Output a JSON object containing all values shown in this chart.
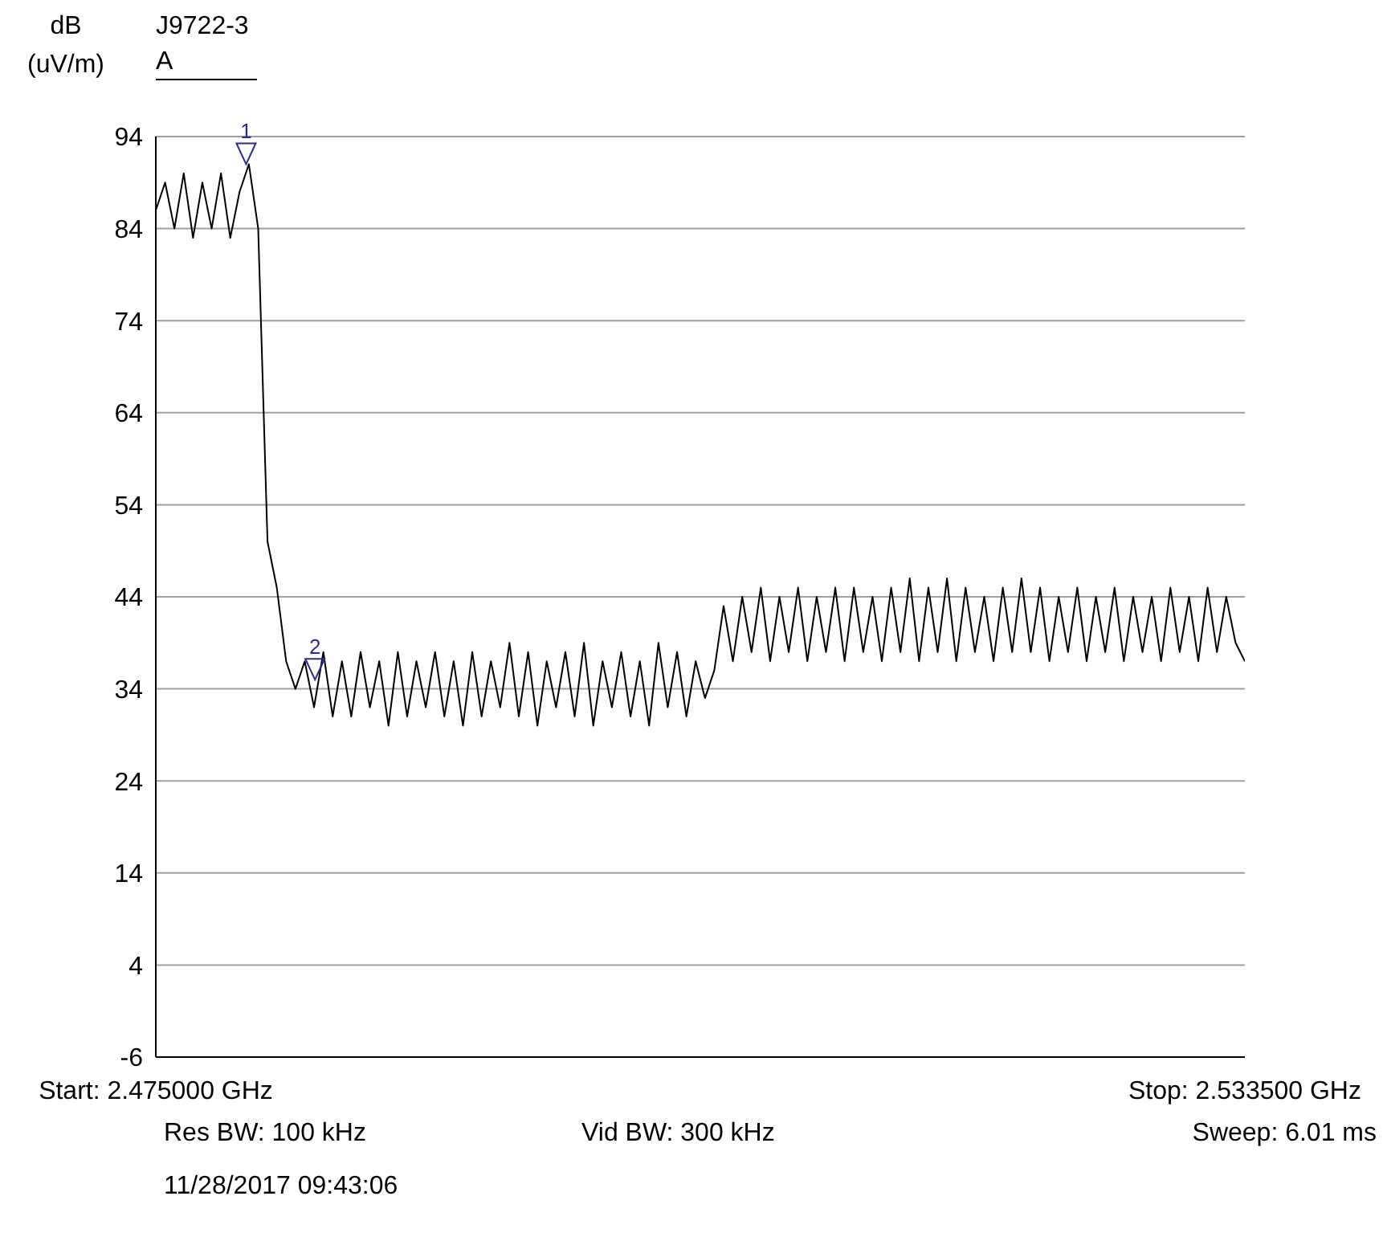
{
  "chart_data": {
    "type": "line",
    "title": "J9722-3",
    "ylabel": "dB (uV/m)",
    "x": [
      2.475,
      2.4755,
      2.476,
      2.4765,
      2.477,
      2.4775,
      2.478,
      2.4785,
      2.479,
      2.4795,
      2.48,
      2.4805,
      2.481,
      2.4815,
      2.482,
      2.4825,
      2.483,
      2.4835,
      2.484,
      2.4845,
      2.485,
      2.4855,
      2.486,
      2.4865,
      2.487,
      2.4875,
      2.488,
      2.4885,
      2.489,
      2.4895,
      2.49,
      2.4905,
      2.491,
      2.4915,
      2.492,
      2.4925,
      2.493,
      2.4935,
      2.494,
      2.4945,
      2.495,
      2.4955,
      2.496,
      2.4965,
      2.497,
      2.4975,
      2.498,
      2.4985,
      2.499,
      2.4995,
      2.5,
      2.5005,
      2.501,
      2.5015,
      2.502,
      2.5025,
      2.503,
      2.5035,
      2.504,
      2.5045,
      2.505,
      2.5055,
      2.506,
      2.5065,
      2.507,
      2.5075,
      2.508,
      2.5085,
      2.509,
      2.5095,
      2.51,
      2.5105,
      2.511,
      2.5115,
      2.512,
      2.5125,
      2.513,
      2.5135,
      2.514,
      2.5145,
      2.515,
      2.5155,
      2.516,
      2.5165,
      2.517,
      2.5175,
      2.518,
      2.5185,
      2.519,
      2.5195,
      2.52,
      2.5205,
      2.521,
      2.5215,
      2.522,
      2.5225,
      2.523,
      2.5235,
      2.524,
      2.5245,
      2.525,
      2.5255,
      2.526,
      2.5265,
      2.527,
      2.5275,
      2.528,
      2.5285,
      2.529,
      2.5295,
      2.53,
      2.5305,
      2.531,
      2.5315,
      2.532,
      2.5325,
      2.533,
      2.5335
    ],
    "series": [
      {
        "name": "A",
        "color": "#000000",
        "values": [
          86,
          89,
          84,
          90,
          83,
          89,
          84,
          90,
          83,
          88,
          91,
          84,
          50,
          45,
          37,
          34,
          37,
          32,
          38,
          31,
          37,
          31,
          38,
          32,
          37,
          30,
          38,
          31,
          37,
          32,
          38,
          31,
          37,
          30,
          38,
          31,
          37,
          32,
          39,
          31,
          38,
          30,
          37,
          32,
          38,
          31,
          39,
          30,
          37,
          32,
          38,
          31,
          37,
          30,
          39,
          32,
          38,
          31,
          37,
          33,
          36,
          43,
          37,
          44,
          38,
          45,
          37,
          44,
          38,
          45,
          37,
          44,
          38,
          45,
          37,
          45,
          38,
          44,
          37,
          45,
          38,
          46,
          37,
          45,
          38,
          46,
          37,
          45,
          38,
          44,
          37,
          45,
          38,
          46,
          38,
          45,
          37,
          44,
          38,
          45,
          37,
          44,
          38,
          45,
          37,
          44,
          38,
          44,
          37,
          45,
          38,
          44,
          37,
          45,
          38,
          44,
          39,
          37
        ]
      }
    ],
    "xlim": [
      2.475,
      2.5335
    ],
    "xticks": [
      {
        "value": 2.475,
        "label": "Start: 2.475000 GHz"
      },
      {
        "value": 2.5335,
        "label": "Stop: 2.533500 GHz"
      }
    ],
    "ylim": [
      -6,
      94
    ],
    "yticks": [
      -6,
      4,
      14,
      24,
      34,
      44,
      54,
      64,
      74,
      84,
      94
    ],
    "grid": "y",
    "legend": "top left",
    "annotations": [
      "Res BW: 100 kHz",
      "Vid BW: 300 kHz",
      "Sweep: 6.01 ms",
      "11/28/2017 09:43:06",
      {
        "text": "1",
        "x": 2.47985,
        "y": 91
      },
      {
        "text": "2",
        "x": 2.48355,
        "y": 35
      }
    ]
  }
}
